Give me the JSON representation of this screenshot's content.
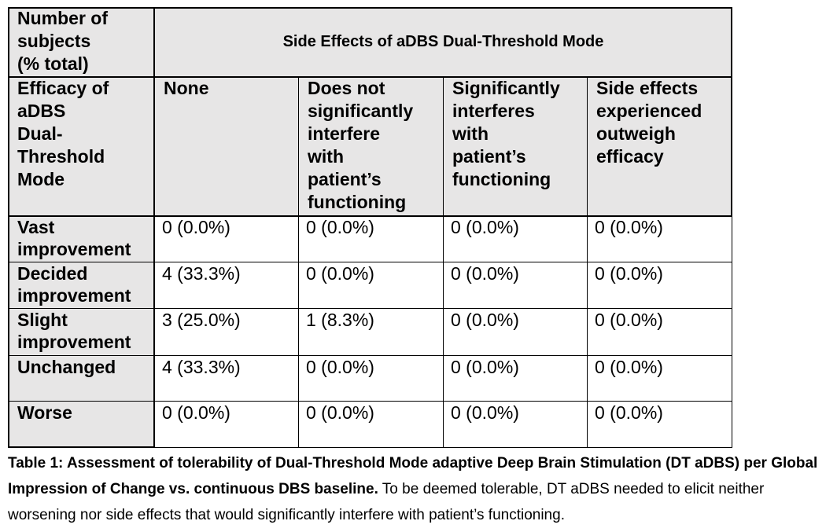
{
  "table": {
    "corner_top": "Number of\nsubjects\n(% total)",
    "group_header": "Side Effects of aDBS Dual-Threshold Mode",
    "corner_bottom": "Efficacy of\naDBS\nDual-\nThreshold\nMode",
    "columns": [
      "None",
      "Does not\nsignificantly\ninterfere\nwith\npatient’s\nfunctioning",
      "Significantly\ninterferes\nwith\npatient’s\nfunctioning",
      "Side effects\nexperienced\noutweigh\nefficacy"
    ],
    "rows": [
      {
        "label": "Vast\nimprovement",
        "values": [
          "0 (0.0%)",
          "0 (0.0%)",
          "0 (0.0%)",
          "0 (0.0%)"
        ]
      },
      {
        "label": "Decided\nimprovement",
        "values": [
          "4 (33.3%)",
          "0 (0.0%)",
          "0 (0.0%)",
          "0 (0.0%)"
        ]
      },
      {
        "label": "Slight\nimprovement",
        "values": [
          "3 (25.0%)",
          "1 (8.3%)",
          "0 (0.0%)",
          "0 (0.0%)"
        ]
      },
      {
        "label": "Unchanged",
        "values": [
          "4 (33.3%)",
          "0 (0.0%)",
          "0 (0.0%)",
          "0 (0.0%)"
        ]
      },
      {
        "label": "Worse",
        "values": [
          "0 (0.0%)",
          "0 (0.0%)",
          "0 (0.0%)",
          "0 (0.0%)"
        ]
      }
    ]
  },
  "caption": {
    "bold": "Table 1: Assessment of tolerability of Dual-Threshold Mode adaptive Deep Brain Stimulation (DT aDBS) per Global Impression of Change vs. continuous DBS baseline.",
    "text": " To be deemed tolerable, DT aDBS needed to elicit neither worsening nor side effects that would significantly interfere with patient’s functioning."
  }
}
